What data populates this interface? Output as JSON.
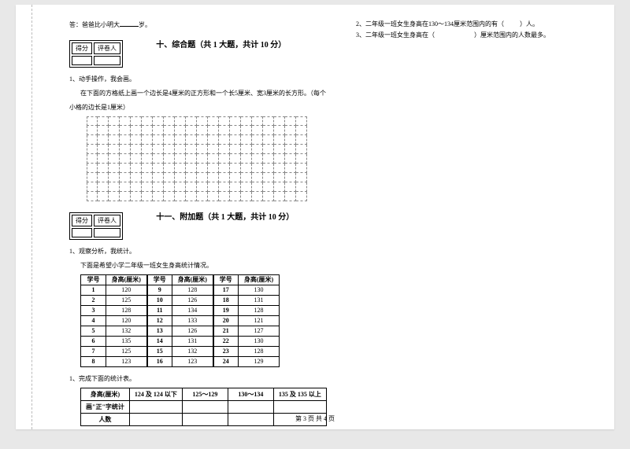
{
  "top_answer": {
    "pre": "答：爸爸比小明大",
    "post": "岁。"
  },
  "score_labels": {
    "l1": "得分",
    "l2": "评卷人"
  },
  "section10": {
    "title": "十、综合题（共 1 大题，共计 10 分）",
    "q_num": "1、动手操作，我会画。",
    "q_text1": "在下面的方格纸上画一个边长是4厘米的正方形和一个长5厘米、宽3厘米的长方形。（每个",
    "q_text2": "小格的边长是1厘米）",
    "grid": {
      "rows": 9,
      "cols": 20
    }
  },
  "section11": {
    "title": "十一、附加题（共 1 大题，共计 10 分）",
    "q_num": "1、观察分析，我统计。",
    "q_text": "下面是希望小学二年级一班女生身高统计情况。",
    "headers": [
      "学号",
      "身高(厘米)"
    ],
    "rows": [
      [
        "1",
        "120",
        "9",
        "128",
        "17",
        "130"
      ],
      [
        "2",
        "125",
        "10",
        "126",
        "18",
        "131"
      ],
      [
        "3",
        "128",
        "11",
        "134",
        "19",
        "128"
      ],
      [
        "4",
        "120",
        "12",
        "133",
        "20",
        "121"
      ],
      [
        "5",
        "132",
        "13",
        "126",
        "21",
        "127"
      ],
      [
        "6",
        "135",
        "14",
        "131",
        "22",
        "130"
      ],
      [
        "7",
        "125",
        "15",
        "132",
        "23",
        "128"
      ],
      [
        "8",
        "123",
        "16",
        "123",
        "24",
        "129"
      ]
    ],
    "sub_q": "1、完成下面的统计表。",
    "summary_headers": [
      "身高(厘米)",
      "124 及 124 以下",
      "125～129",
      "130～134",
      "135 及 135 以上"
    ],
    "summary_rows": [
      "画\"正\"字统计",
      "人数"
    ]
  },
  "right": {
    "q2": {
      "pre": "2、二年级一班女生身高在130～134厘米范围内的有（",
      "post": "）人。"
    },
    "q3": {
      "pre": "3、二年级一班女生身高在（",
      "post": "）厘米范围内的人数最多。"
    }
  },
  "footer": "第 3 页  共 4 页"
}
